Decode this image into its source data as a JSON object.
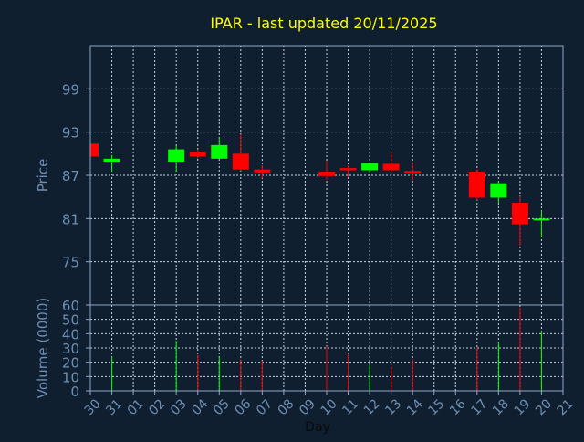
{
  "chart_data": {
    "type": "candlestick",
    "title": "IPAR - last updated 20/11/2025",
    "price_panel": {
      "ylabel": "Price",
      "yticks": [
        99,
        93,
        87,
        81,
        75
      ],
      "ylim": [
        69,
        105
      ]
    },
    "volume_panel": {
      "ylabel": "Volume (0000)",
      "yticks": [
        60,
        50,
        40,
        30,
        20,
        10,
        0
      ],
      "ylim": [
        0,
        60
      ]
    },
    "xlabel": "Day",
    "x_tick_labels": [
      "30",
      "31",
      "01",
      "02",
      "03",
      "04",
      "05",
      "06",
      "07",
      "08",
      "09",
      "10",
      "11",
      "12",
      "13",
      "14",
      "15",
      "16",
      "17",
      "18",
      "19",
      "20",
      "21"
    ],
    "grid": true,
    "colors": {
      "background": "#0f1f30",
      "axis": "#8da7c8",
      "grid": "#c8d4e0",
      "title": "#ffff00",
      "label": "#6e8fb3",
      "up": "#00ff00",
      "down": "#ff0000"
    },
    "candles": [
      {
        "day": "30",
        "open": 91.4,
        "high": 91.4,
        "low": 89.6,
        "close": 89.6
      },
      {
        "day": "31",
        "open": 88.9,
        "high": 89.8,
        "low": 87.5,
        "close": 89.3
      },
      {
        "day": "03",
        "open": 88.9,
        "high": 91.1,
        "low": 87.5,
        "close": 90.6
      },
      {
        "day": "04",
        "open": 90.3,
        "high": 90.6,
        "low": 89.3,
        "close": 89.6
      },
      {
        "day": "05",
        "open": 89.3,
        "high": 92.3,
        "low": 89.3,
        "close": 91.2
      },
      {
        "day": "06",
        "open": 90.0,
        "high": 92.7,
        "low": 87.6,
        "close": 87.8
      },
      {
        "day": "07",
        "open": 87.8,
        "high": 88.4,
        "low": 86.6,
        "close": 87.4
      },
      {
        "day": "10",
        "open": 87.5,
        "high": 89.0,
        "low": 86.4,
        "close": 86.9
      },
      {
        "day": "11",
        "open": 88.0,
        "high": 88.4,
        "low": 86.7,
        "close": 87.7
      },
      {
        "day": "12",
        "open": 87.7,
        "high": 88.7,
        "low": 87.4,
        "close": 88.7
      },
      {
        "day": "13",
        "open": 88.6,
        "high": 90.2,
        "low": 87.5,
        "close": 87.7
      },
      {
        "day": "14",
        "open": 87.6,
        "high": 88.8,
        "low": 86.3,
        "close": 87.4
      },
      {
        "day": "17",
        "open": 87.5,
        "high": 87.8,
        "low": 83.5,
        "close": 83.9
      },
      {
        "day": "18",
        "open": 83.9,
        "high": 86.2,
        "low": 83.2,
        "close": 85.9
      },
      {
        "day": "19",
        "open": 83.2,
        "high": 84.1,
        "low": 77.2,
        "close": 80.2
      },
      {
        "day": "20",
        "open": 81.0,
        "high": 82.1,
        "low": 78.4,
        "close": 81.0
      }
    ],
    "volume": [
      {
        "day": "31",
        "value": 24,
        "dir": "up"
      },
      {
        "day": "03",
        "value": 35,
        "dir": "up"
      },
      {
        "day": "04",
        "value": 25,
        "dir": "down"
      },
      {
        "day": "05",
        "value": 24,
        "dir": "up"
      },
      {
        "day": "06",
        "value": 22,
        "dir": "down"
      },
      {
        "day": "07",
        "value": 21,
        "dir": "down"
      },
      {
        "day": "10",
        "value": 31,
        "dir": "down"
      },
      {
        "day": "11",
        "value": 26,
        "dir": "down"
      },
      {
        "day": "12",
        "value": 18,
        "dir": "up"
      },
      {
        "day": "13",
        "value": 17,
        "dir": "down"
      },
      {
        "day": "14",
        "value": 22,
        "dir": "down"
      },
      {
        "day": "17",
        "value": 30,
        "dir": "down"
      },
      {
        "day": "18",
        "value": 34,
        "dir": "up"
      },
      {
        "day": "19",
        "value": 58,
        "dir": "down"
      },
      {
        "day": "20",
        "value": 42,
        "dir": "up"
      }
    ]
  }
}
